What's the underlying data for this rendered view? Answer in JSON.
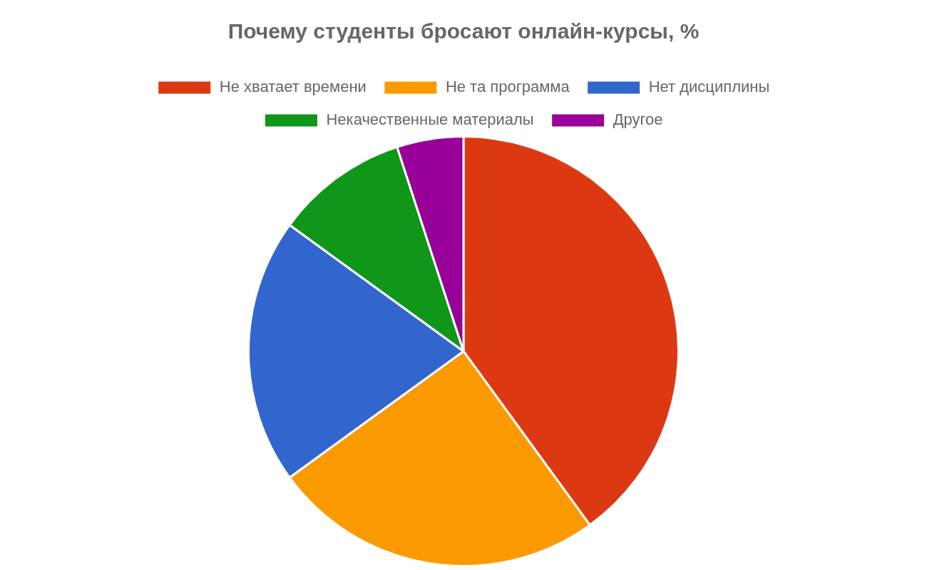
{
  "chart_data": {
    "type": "pie",
    "title": "Почему студенты бросают онлайн-курсы, %",
    "categories": [
      "Не хватает времени",
      "Не та программа",
      "Нет дисциплины",
      "Некачественные материалы",
      "Другое"
    ],
    "values": [
      40,
      25,
      20,
      10,
      5
    ],
    "colors": [
      "#dc3912",
      "#fb9a00",
      "#3366cc",
      "#109618",
      "#990099"
    ],
    "legend": "top"
  }
}
